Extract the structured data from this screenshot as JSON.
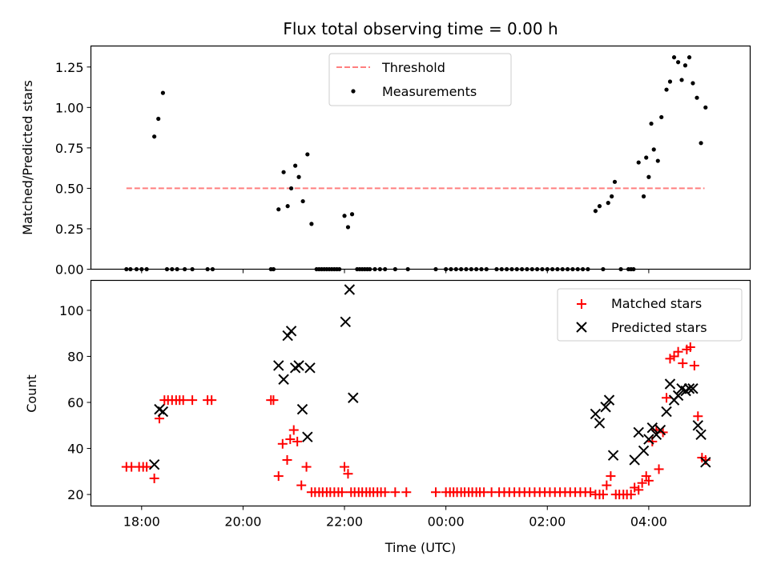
{
  "chart_data": [
    {
      "type": "scatter",
      "title": "Flux total observing time = 0.00 h",
      "ylabel": "Matched/Predicted stars",
      "xlabel": "",
      "ylim": [
        0,
        1.38
      ],
      "yticks": [
        "0.00",
        "0.25",
        "0.50",
        "0.75",
        "1.00",
        "1.25"
      ],
      "ytick_values": [
        0,
        0.25,
        0.5,
        0.75,
        1.0,
        1.25
      ],
      "threshold": {
        "name": "Threshold",
        "y": 0.5,
        "x": [
          17.7,
          29.1
        ],
        "color": "#ff7f7f"
      },
      "legend": {
        "placement": "upper-center",
        "entries": [
          "Threshold",
          "Measurements"
        ]
      },
      "series": [
        {
          "name": "Measurements",
          "color": "#000000",
          "points": [
            [
              17.7,
              0
            ],
            [
              17.78,
              0
            ],
            [
              17.9,
              0
            ],
            [
              18.0,
              0
            ],
            [
              18.1,
              0
            ],
            [
              18.25,
              0.82
            ],
            [
              18.33,
              0.93
            ],
            [
              18.42,
              1.09
            ],
            [
              18.5,
              0
            ],
            [
              18.6,
              0
            ],
            [
              18.7,
              0
            ],
            [
              18.85,
              0
            ],
            [
              19.0,
              0
            ],
            [
              19.3,
              0
            ],
            [
              19.4,
              0
            ],
            [
              20.55,
              0
            ],
            [
              20.6,
              0
            ],
            [
              20.7,
              0.37
            ],
            [
              20.8,
              0.6
            ],
            [
              20.88,
              0.39
            ],
            [
              20.95,
              0.5
            ],
            [
              21.03,
              0.64
            ],
            [
              21.1,
              0.57
            ],
            [
              21.18,
              0.42
            ],
            [
              21.27,
              0.71
            ],
            [
              21.35,
              0.28
            ],
            [
              21.45,
              0
            ],
            [
              21.5,
              0
            ],
            [
              21.55,
              0
            ],
            [
              21.6,
              0
            ],
            [
              21.65,
              0
            ],
            [
              21.7,
              0
            ],
            [
              21.75,
              0
            ],
            [
              21.8,
              0
            ],
            [
              21.85,
              0
            ],
            [
              21.9,
              0
            ],
            [
              22.0,
              0.33
            ],
            [
              22.07,
              0.26
            ],
            [
              22.15,
              0.34
            ],
            [
              22.25,
              0
            ],
            [
              22.3,
              0
            ],
            [
              22.35,
              0
            ],
            [
              22.4,
              0
            ],
            [
              22.45,
              0
            ],
            [
              22.5,
              0
            ],
            [
              22.6,
              0
            ],
            [
              22.7,
              0
            ],
            [
              22.8,
              0
            ],
            [
              23.0,
              0
            ],
            [
              23.25,
              0
            ],
            [
              23.8,
              0
            ],
            [
              24.0,
              0
            ],
            [
              24.1,
              0
            ],
            [
              24.2,
              0
            ],
            [
              24.3,
              0
            ],
            [
              24.4,
              0
            ],
            [
              24.5,
              0
            ],
            [
              24.6,
              0
            ],
            [
              24.7,
              0
            ],
            [
              24.8,
              0
            ],
            [
              25.0,
              0
            ],
            [
              25.1,
              0
            ],
            [
              25.2,
              0
            ],
            [
              25.3,
              0
            ],
            [
              25.4,
              0
            ],
            [
              25.5,
              0
            ],
            [
              25.6,
              0
            ],
            [
              25.7,
              0
            ],
            [
              25.8,
              0
            ],
            [
              25.9,
              0
            ],
            [
              26.0,
              0
            ],
            [
              26.1,
              0
            ],
            [
              26.2,
              0
            ],
            [
              26.3,
              0
            ],
            [
              26.4,
              0
            ],
            [
              26.5,
              0
            ],
            [
              26.6,
              0
            ],
            [
              26.7,
              0
            ],
            [
              26.8,
              0
            ],
            [
              26.95,
              0.36
            ],
            [
              27.03,
              0.39
            ],
            [
              27.1,
              0
            ],
            [
              27.2,
              0.41
            ],
            [
              27.27,
              0.45
            ],
            [
              27.33,
              0.54
            ],
            [
              27.45,
              0
            ],
            [
              27.6,
              0
            ],
            [
              27.65,
              0
            ],
            [
              27.7,
              0
            ],
            [
              27.8,
              0.66
            ],
            [
              27.9,
              0.45
            ],
            [
              27.95,
              0.69
            ],
            [
              28.0,
              0.57
            ],
            [
              28.05,
              0.9
            ],
            [
              28.1,
              0.74
            ],
            [
              28.18,
              0.67
            ],
            [
              28.25,
              0.94
            ],
            [
              28.35,
              1.11
            ],
            [
              28.42,
              1.16
            ],
            [
              28.5,
              1.31
            ],
            [
              28.58,
              1.28
            ],
            [
              28.65,
              1.17
            ],
            [
              28.72,
              1.26
            ],
            [
              28.8,
              1.31
            ],
            [
              28.87,
              1.15
            ],
            [
              28.95,
              1.06
            ],
            [
              29.03,
              0.78
            ],
            [
              29.12,
              1.0
            ]
          ]
        }
      ]
    },
    {
      "type": "scatter",
      "title": "",
      "xlabel": "Time (UTC)",
      "ylabel": "Count",
      "xlim": [
        17.0,
        30.0
      ],
      "ylim": [
        15,
        113
      ],
      "xticks": [
        "18:00",
        "20:00",
        "22:00",
        "00:00",
        "02:00",
        "04:00"
      ],
      "xtick_values": [
        18,
        20,
        22,
        24,
        26,
        28
      ],
      "yticks": [
        "20",
        "40",
        "60",
        "80",
        "100"
      ],
      "ytick_values": [
        20,
        40,
        60,
        80,
        100
      ],
      "legend": {
        "placement": "upper-right",
        "entries": [
          "Matched stars",
          "Predicted stars"
        ]
      },
      "series": [
        {
          "name": "Matched stars",
          "marker": "plus",
          "color": "#ff0000",
          "points": [
            [
              17.7,
              32
            ],
            [
              17.8,
              32
            ],
            [
              17.95,
              32
            ],
            [
              18.03,
              32
            ],
            [
              18.1,
              32
            ],
            [
              18.25,
              27
            ],
            [
              18.35,
              53
            ],
            [
              18.45,
              61
            ],
            [
              18.52,
              61
            ],
            [
              18.6,
              61
            ],
            [
              18.68,
              61
            ],
            [
              18.75,
              61
            ],
            [
              18.82,
              61
            ],
            [
              19.0,
              61
            ],
            [
              19.3,
              61
            ],
            [
              19.38,
              61
            ],
            [
              20.55,
              61
            ],
            [
              20.6,
              61
            ],
            [
              20.7,
              28
            ],
            [
              20.78,
              42
            ],
            [
              20.87,
              35
            ],
            [
              20.93,
              44
            ],
            [
              21.0,
              48
            ],
            [
              21.07,
              43
            ],
            [
              21.15,
              24
            ],
            [
              21.25,
              32
            ],
            [
              21.35,
              21
            ],
            [
              21.42,
              21
            ],
            [
              21.5,
              21
            ],
            [
              21.57,
              21
            ],
            [
              21.65,
              21
            ],
            [
              21.72,
              21
            ],
            [
              21.8,
              21
            ],
            [
              21.88,
              21
            ],
            [
              21.95,
              21
            ],
            [
              22.0,
              32
            ],
            [
              22.07,
              29
            ],
            [
              22.13,
              21
            ],
            [
              22.2,
              21
            ],
            [
              22.28,
              21
            ],
            [
              22.35,
              21
            ],
            [
              22.43,
              21
            ],
            [
              22.5,
              21
            ],
            [
              22.57,
              21
            ],
            [
              22.65,
              21
            ],
            [
              22.72,
              21
            ],
            [
              22.8,
              21
            ],
            [
              23.0,
              21
            ],
            [
              23.22,
              21
            ],
            [
              23.8,
              21
            ],
            [
              24.0,
              21
            ],
            [
              24.08,
              21
            ],
            [
              24.15,
              21
            ],
            [
              24.22,
              21
            ],
            [
              24.3,
              21
            ],
            [
              24.37,
              21
            ],
            [
              24.45,
              21
            ],
            [
              24.52,
              21
            ],
            [
              24.6,
              21
            ],
            [
              24.67,
              21
            ],
            [
              24.75,
              21
            ],
            [
              24.9,
              21
            ],
            [
              25.05,
              21
            ],
            [
              25.15,
              21
            ],
            [
              25.25,
              21
            ],
            [
              25.35,
              21
            ],
            [
              25.45,
              21
            ],
            [
              25.55,
              21
            ],
            [
              25.65,
              21
            ],
            [
              25.75,
              21
            ],
            [
              25.85,
              21
            ],
            [
              25.95,
              21
            ],
            [
              26.05,
              21
            ],
            [
              26.15,
              21
            ],
            [
              26.25,
              21
            ],
            [
              26.35,
              21
            ],
            [
              26.45,
              21
            ],
            [
              26.55,
              21
            ],
            [
              26.65,
              21
            ],
            [
              26.75,
              21
            ],
            [
              26.85,
              21
            ],
            [
              26.95,
              20
            ],
            [
              27.03,
              20
            ],
            [
              27.1,
              20
            ],
            [
              27.17,
              24
            ],
            [
              27.25,
              28
            ],
            [
              27.35,
              20
            ],
            [
              27.42,
              20
            ],
            [
              27.5,
              20
            ],
            [
              27.57,
              20
            ],
            [
              27.65,
              20
            ],
            [
              27.72,
              23
            ],
            [
              27.8,
              22
            ],
            [
              27.87,
              25
            ],
            [
              27.95,
              28
            ],
            [
              28.0,
              26
            ],
            [
              28.07,
              43
            ],
            [
              28.15,
              48
            ],
            [
              28.2,
              31
            ],
            [
              28.28,
              47
            ],
            [
              28.35,
              62
            ],
            [
              28.42,
              79
            ],
            [
              28.5,
              80
            ],
            [
              28.58,
              82
            ],
            [
              28.67,
              77
            ],
            [
              28.75,
              83
            ],
            [
              28.82,
              84
            ],
            [
              28.9,
              76
            ],
            [
              28.97,
              54
            ],
            [
              29.05,
              36
            ],
            [
              29.12,
              35
            ]
          ]
        },
        {
          "name": "Predicted stars",
          "marker": "x",
          "color": "#000000",
          "points": [
            [
              18.25,
              33
            ],
            [
              18.35,
              57
            ],
            [
              18.42,
              56
            ],
            [
              20.7,
              76
            ],
            [
              20.8,
              70
            ],
            [
              20.88,
              89
            ],
            [
              20.95,
              91
            ],
            [
              21.03,
              75
            ],
            [
              21.1,
              76
            ],
            [
              21.17,
              57
            ],
            [
              21.27,
              45
            ],
            [
              21.32,
              75
            ],
            [
              22.02,
              95
            ],
            [
              22.1,
              109
            ],
            [
              22.17,
              62
            ],
            [
              26.95,
              55
            ],
            [
              27.03,
              51
            ],
            [
              27.15,
              58
            ],
            [
              27.22,
              61
            ],
            [
              27.3,
              37
            ],
            [
              27.72,
              35
            ],
            [
              27.8,
              47
            ],
            [
              27.9,
              39
            ],
            [
              28.0,
              44
            ],
            [
              28.07,
              49
            ],
            [
              28.15,
              46
            ],
            [
              28.23,
              48
            ],
            [
              28.35,
              56
            ],
            [
              28.42,
              68
            ],
            [
              28.5,
              61
            ],
            [
              28.58,
              63
            ],
            [
              28.65,
              66
            ],
            [
              28.73,
              65
            ],
            [
              28.8,
              66
            ],
            [
              28.87,
              66
            ],
            [
              28.97,
              50
            ],
            [
              29.03,
              46
            ],
            [
              29.12,
              34
            ]
          ]
        }
      ]
    }
  ]
}
